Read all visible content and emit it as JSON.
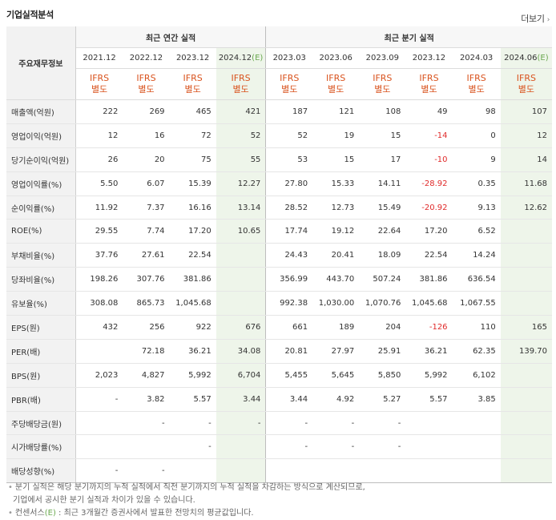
{
  "title": "기업실적분석",
  "more_label": "더보기",
  "header": {
    "corner": "주요재무정보",
    "annual_group": "최근 연간 실적",
    "quarter_group": "최근 분기 실적",
    "periods": [
      {
        "label": "2021.12",
        "est": ""
      },
      {
        "label": "2022.12",
        "est": ""
      },
      {
        "label": "2023.12",
        "est": ""
      },
      {
        "label": "2024.12",
        "est": "(E)"
      },
      {
        "label": "2023.03",
        "est": ""
      },
      {
        "label": "2023.06",
        "est": ""
      },
      {
        "label": "2023.09",
        "est": ""
      },
      {
        "label": "2023.12",
        "est": ""
      },
      {
        "label": "2024.03",
        "est": ""
      },
      {
        "label": "2024.06",
        "est": "(E)"
      }
    ],
    "basis_line1": "IFRS",
    "basis_line2": "별도"
  },
  "rows": [
    {
      "label": "매출액(억원)",
      "values": [
        "222",
        "269",
        "465",
        "421",
        "187",
        "121",
        "108",
        "49",
        "98",
        "107"
      ]
    },
    {
      "label": "영업이익(억원)",
      "values": [
        "12",
        "16",
        "72",
        "52",
        "52",
        "19",
        "15",
        "-14",
        "0",
        "12"
      ]
    },
    {
      "label": "당기순이익(억원)",
      "values": [
        "26",
        "20",
        "75",
        "55",
        "53",
        "15",
        "17",
        "-10",
        "9",
        "14"
      ]
    },
    {
      "label": "영업이익률(%)",
      "values": [
        "5.50",
        "6.07",
        "15.39",
        "12.27",
        "27.80",
        "15.33",
        "14.11",
        "-28.92",
        "0.35",
        "11.68"
      ]
    },
    {
      "label": "순이익률(%)",
      "values": [
        "11.92",
        "7.37",
        "16.16",
        "13.14",
        "28.52",
        "12.73",
        "15.49",
        "-20.92",
        "9.13",
        "12.62"
      ]
    },
    {
      "label": "ROE(%)",
      "values": [
        "29.55",
        "7.74",
        "17.20",
        "10.65",
        "17.74",
        "19.12",
        "22.64",
        "17.20",
        "6.52",
        ""
      ]
    },
    {
      "label": "부채비율(%)",
      "values": [
        "37.76",
        "27.61",
        "22.54",
        "",
        "24.43",
        "20.41",
        "18.09",
        "22.54",
        "14.24",
        ""
      ]
    },
    {
      "label": "당좌비율(%)",
      "values": [
        "198.26",
        "307.76",
        "381.86",
        "",
        "356.99",
        "443.70",
        "507.24",
        "381.86",
        "636.54",
        ""
      ]
    },
    {
      "label": "유보율(%)",
      "values": [
        "308.08",
        "865.73",
        "1,045.68",
        "",
        "992.38",
        "1,030.00",
        "1,070.76",
        "1,045.68",
        "1,067.55",
        ""
      ]
    },
    {
      "label": "EPS(원)",
      "values": [
        "432",
        "256",
        "922",
        "676",
        "661",
        "189",
        "204",
        "-126",
        "110",
        "165"
      ]
    },
    {
      "label": "PER(배)",
      "values": [
        "",
        "72.18",
        "36.21",
        "34.08",
        "20.81",
        "27.97",
        "25.91",
        "36.21",
        "62.35",
        "139.70"
      ]
    },
    {
      "label": "BPS(원)",
      "values": [
        "2,023",
        "4,827",
        "5,992",
        "6,704",
        "5,455",
        "5,645",
        "5,850",
        "5,992",
        "6,102",
        ""
      ]
    },
    {
      "label": "PBR(배)",
      "values": [
        "-",
        "3.82",
        "5.57",
        "3.44",
        "3.44",
        "4.92",
        "5.27",
        "5.57",
        "3.85",
        ""
      ]
    },
    {
      "label": "주당배당금(원)",
      "values": [
        "",
        "-",
        "-",
        "-",
        "-",
        "-",
        "-",
        "",
        "",
        ""
      ]
    },
    {
      "label": "시가배당률(%)",
      "values": [
        "",
        "",
        "-",
        "",
        "-",
        "-",
        "-",
        "",
        "",
        ""
      ]
    },
    {
      "label": "배당성향(%)",
      "values": [
        "-",
        "-",
        "",
        "",
        "",
        "",
        "",
        "",
        "",
        ""
      ]
    }
  ],
  "notes": {
    "note1_line1": "분기 실적은 해당 분기까지의 누적 실적에서 직전 분기까지의 누적 실적을 차감하는 방식으로 계산되므로,",
    "note1_line2": "기업에서 공시한 분기 실적과 차이가 있을 수 있습니다.",
    "note2_prefix": "컨센서스",
    "note2_est": "(E)",
    "note2_rest": ": 최근 3개월간 증권사에서 발표한 전망치의 평균값입니다."
  },
  "colors": {
    "negative": "#e02a2a",
    "ifrs": "#d9531e",
    "estimate_bg": "#eef5ea",
    "estimate_mark": "#6aa84f",
    "header_bg": "#f2f2f2"
  }
}
